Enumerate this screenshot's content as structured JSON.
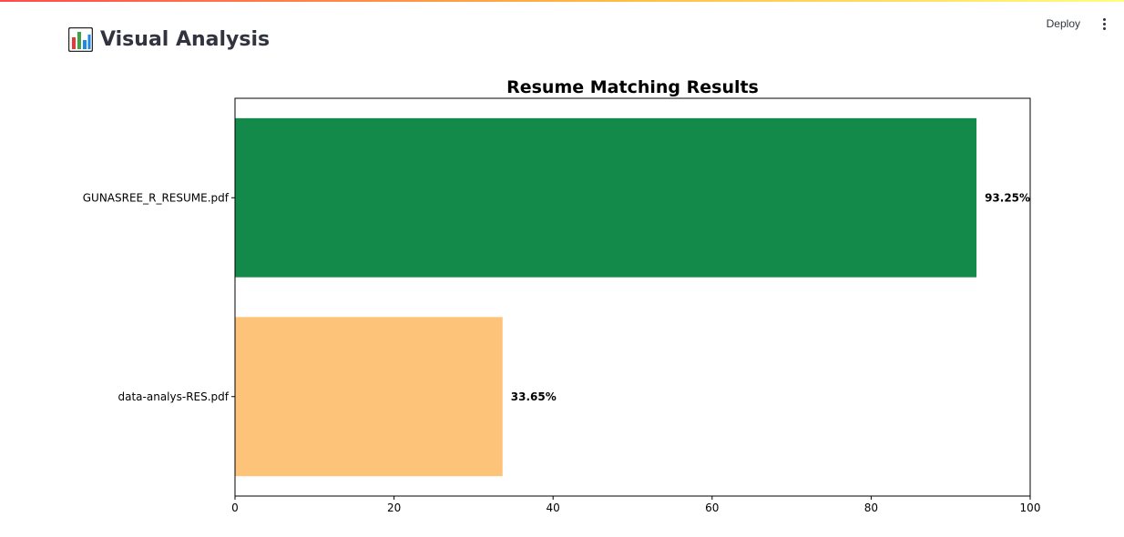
{
  "app": {
    "deploy_label": "Deploy",
    "menu_icon": "more-vertical-icon"
  },
  "page": {
    "title": "Visual Analysis",
    "title_icon": "bar-chart-icon"
  },
  "chart_data": {
    "type": "bar",
    "orientation": "horizontal",
    "title": "Resume Matching Results",
    "xlabel": "",
    "ylabel": "",
    "categories": [
      "GUNASREE_R_RESUME.pdf",
      "data-analys-RES.pdf"
    ],
    "values": [
      93.25,
      33.65
    ],
    "value_labels": [
      "93.25%",
      "33.65%"
    ],
    "bar_colors": [
      "#138a4a",
      "#fdc378"
    ],
    "xlim": [
      0,
      100
    ],
    "xticks": [
      0,
      20,
      40,
      60,
      80,
      100
    ],
    "xtick_labels": [
      "0",
      "20",
      "40",
      "60",
      "80",
      "100"
    ],
    "grid": false,
    "legend": "none"
  }
}
